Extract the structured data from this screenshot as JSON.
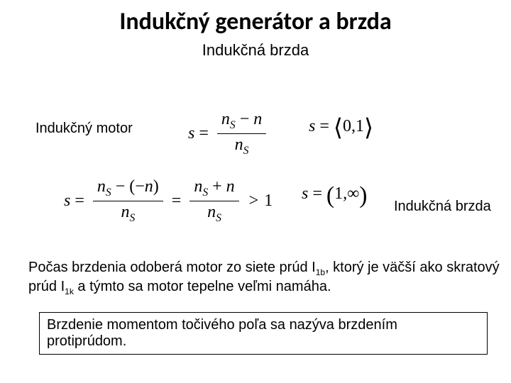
{
  "title": "Indukčný generátor a brzda",
  "subtitle": "Indukčná brzda",
  "labels": {
    "motor": "Indukčný motor",
    "brake": "Indukčná brzda"
  },
  "eq": {
    "s": "s",
    "eq": "=",
    "gt1": ">",
    "one": "1",
    "nS_minus_n_num": "n",
    "nS_sym": "n",
    "S": "S",
    "minus": "−",
    "plus": "+",
    "lpar": "(",
    "rpar": ")",
    "neg_n": "− n",
    "zero": "0",
    "comma": ",",
    "inf": "∞",
    "langle": "⟨",
    "rangle": "⟩"
  },
  "paragraph": {
    "p1a": "Počas brzdenia odoberá motor zo siete prúd I",
    "p1b_sub": "1b",
    "p1c": ", ktorý je väčší ako skratový",
    "p2a": "prúd I",
    "p2b_sub": "1k",
    "p2c": " a týmto sa motor tepelne veľmi namáha."
  },
  "boxed": "Brzdenie momentom točivého poľa sa nazýva brzdením protiprúdom.",
  "style": {
    "title_fontsize": 34,
    "subtitle_fontsize": 22,
    "body_fontsize": 20,
    "eq_fontsize": 24,
    "text_color": "#000000",
    "background": "#ffffff",
    "box_border": "#000000"
  }
}
